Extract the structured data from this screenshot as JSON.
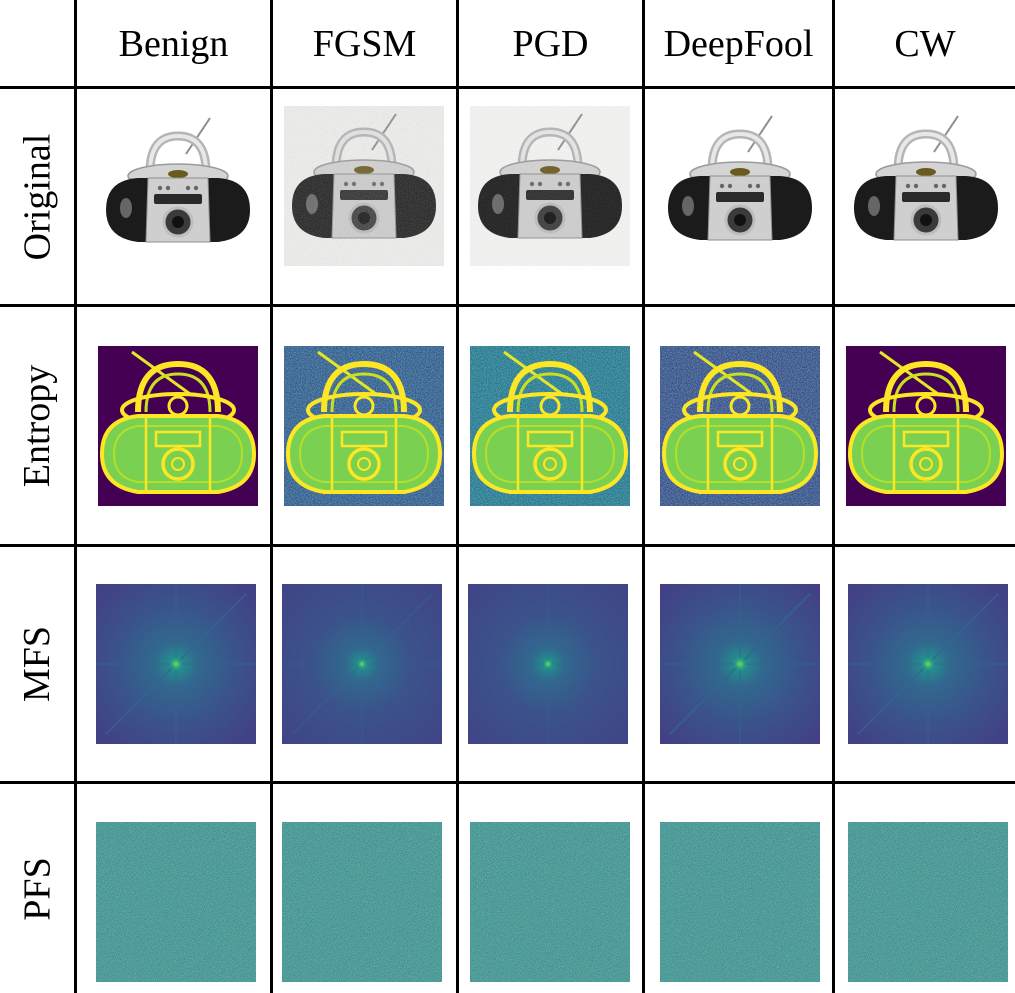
{
  "columns": [
    "Benign",
    "FGSM",
    "PGD",
    "DeepFool",
    "CW"
  ],
  "rows": [
    "Original",
    "Entropy",
    "MFS",
    "PFS"
  ],
  "cells": {
    "original": [
      "boombox photo",
      "boombox photo with FGSM noise",
      "boombox photo with PGD noise",
      "boombox photo",
      "boombox photo"
    ],
    "entropy": [
      "entropy map",
      "entropy map",
      "entropy map",
      "entropy map",
      "entropy map"
    ],
    "mfs": [
      "magnitude spectrum",
      "magnitude spectrum",
      "magnitude spectrum",
      "magnitude spectrum",
      "magnitude spectrum"
    ],
    "pfs": [
      "phase spectrum",
      "phase spectrum",
      "phase spectrum",
      "phase spectrum",
      "phase spectrum"
    ]
  },
  "colors": {
    "viridis_dark": "#440154",
    "viridis_blue": "#3b528b",
    "viridis_teal": "#21918c",
    "viridis_green": "#5ec962",
    "viridis_yellow": "#fde725"
  }
}
